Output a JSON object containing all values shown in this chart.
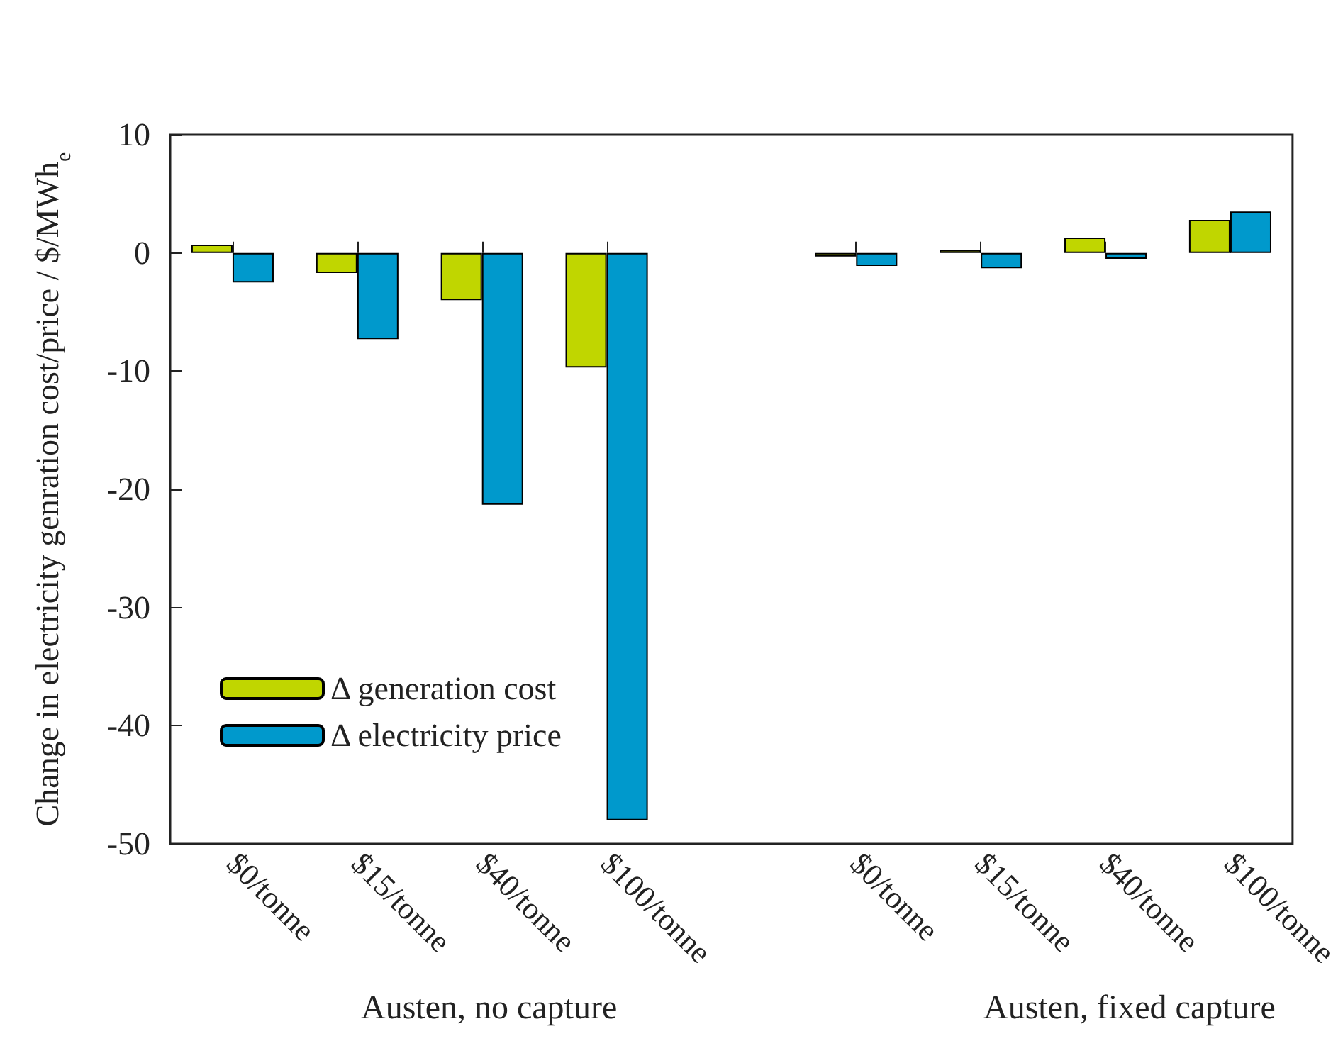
{
  "chart_data": {
    "type": "bar",
    "ylabel": "Change in electricity genration cost/price / $/MWh$_{e}$",
    "categories": [
      "$0/tonne",
      "$15/tonne",
      "$40/tonne",
      "$100/tonne",
      null,
      "$0/tonne",
      "$15/tonne",
      "$40/tonne",
      "$100/tonne"
    ],
    "series": [
      {
        "name": "Δ generation cost",
        "color": "#c0d600",
        "values": [
          0.7,
          -1.7,
          -4.0,
          -9.7,
          null,
          -0.3,
          0.25,
          1.3,
          2.8
        ]
      },
      {
        "name": "Δ electricity price",
        "color": "#0099cc",
        "values": [
          -2.5,
          -7.3,
          -21.3,
          -48.0,
          null,
          -1.1,
          -1.3,
          -0.5,
          3.5
        ]
      }
    ],
    "ylim": [
      -50,
      10
    ],
    "yticks": [
      -50,
      -40,
      -30,
      -20,
      -10,
      0,
      10
    ],
    "legend": "bottom left",
    "annotations": [
      "Austen, no capture",
      "Austen, fixed capture"
    ]
  }
}
